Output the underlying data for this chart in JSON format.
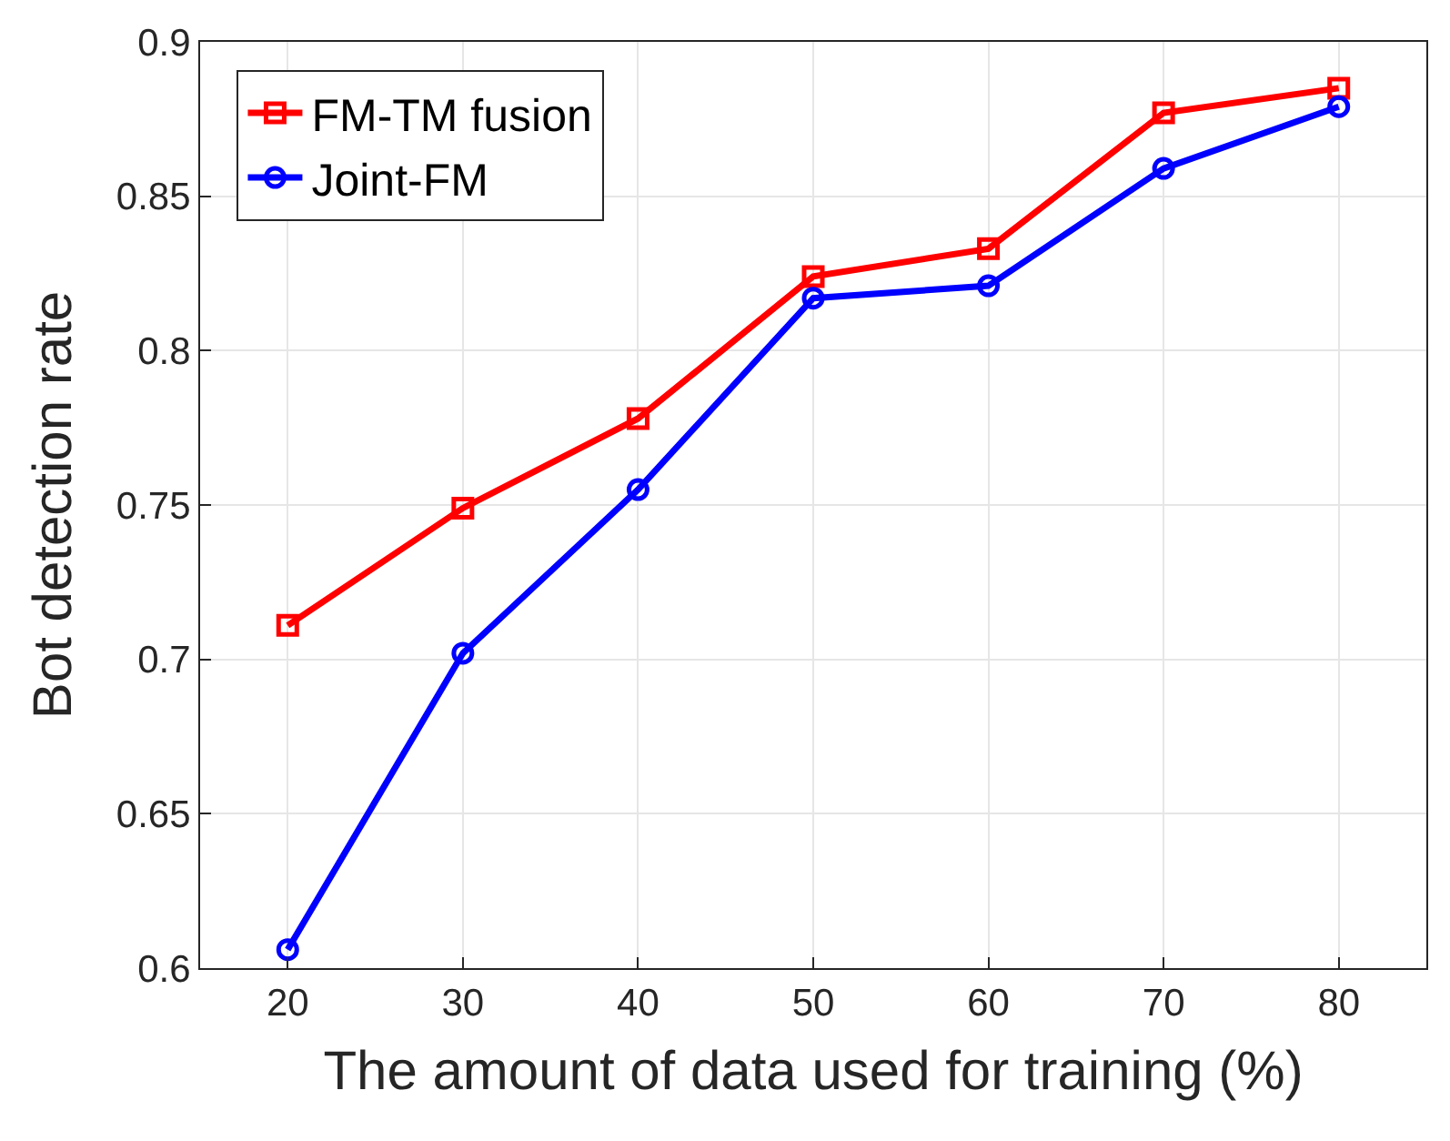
{
  "chart_data": {
    "type": "line",
    "xlabel": "The amount of data used for training (%)",
    "ylabel": "Bot detection rate",
    "x": [
      20,
      30,
      40,
      50,
      60,
      70,
      80
    ],
    "series": [
      {
        "name": "FM-TM fusion",
        "color": "#ff0000",
        "marker": "square",
        "values": [
          0.711,
          0.749,
          0.778,
          0.824,
          0.833,
          0.877,
          0.885
        ]
      },
      {
        "name": "Joint-FM",
        "color": "#0000ff",
        "marker": "circle",
        "values": [
          0.606,
          0.702,
          0.755,
          0.817,
          0.821,
          0.859,
          0.879
        ]
      }
    ],
    "xlim": [
      15,
      85
    ],
    "xticks": [
      20,
      30,
      40,
      50,
      60,
      70,
      80
    ],
    "ylim": [
      0.6,
      0.9
    ],
    "yticks": [
      0.6,
      0.65,
      0.7,
      0.75,
      0.8,
      0.85,
      0.9
    ],
    "grid": true,
    "legend": "top left",
    "line_style": "solid"
  }
}
